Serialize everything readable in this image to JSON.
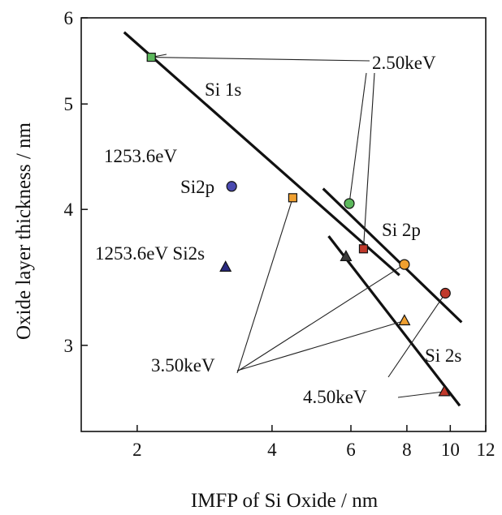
{
  "chart_data": {
    "type": "scatter",
    "x_scale": "log",
    "y_scale": "log",
    "xlim": [
      1.5,
      12
    ],
    "ylim": [
      2.5,
      6
    ],
    "xlabel": "IMFP of Si Oxide  / nm",
    "ylabel": "Oxide layer thickness / nm",
    "x_ticks": [
      2,
      4,
      6,
      8,
      10,
      12
    ],
    "y_ticks": [
      3,
      4,
      5,
      6
    ],
    "grid": false,
    "series": [
      {
        "name": "Si 1s",
        "marker": "square",
        "points": [
          {
            "x": 2.15,
            "y": 5.52,
            "color": "#5cb85c"
          },
          {
            "x": 4.45,
            "y": 4.1,
            "color": "#f0a030"
          },
          {
            "x": 6.4,
            "y": 3.68,
            "color": "#c0392b"
          }
        ],
        "fit_line": [
          [
            1.87,
            5.82
          ],
          [
            7.7,
            3.48
          ]
        ]
      },
      {
        "name": "Si 2p",
        "marker": "circle",
        "points": [
          {
            "x": 3.25,
            "y": 4.2,
            "color": "#4a4ab0"
          },
          {
            "x": 5.95,
            "y": 4.05,
            "color": "#5cb85c"
          },
          {
            "x": 7.9,
            "y": 3.56,
            "color": "#f0a030"
          },
          {
            "x": 9.75,
            "y": 3.35,
            "color": "#c0392b"
          }
        ],
        "fit_line": [
          [
            5.2,
            4.18
          ],
          [
            10.6,
            3.15
          ]
        ]
      },
      {
        "name": "Si 2s",
        "marker": "triangle",
        "points": [
          {
            "x": 3.15,
            "y": 3.54,
            "color": "#2a2a80"
          },
          {
            "x": 5.85,
            "y": 3.62,
            "color": "#3a3a3a"
          },
          {
            "x": 7.9,
            "y": 3.16,
            "color": "#f0a030"
          },
          {
            "x": 9.7,
            "y": 2.72,
            "color": "#c0392b"
          }
        ],
        "fit_line": [
          [
            5.35,
            3.78
          ],
          [
            10.5,
            2.64
          ]
        ]
      }
    ],
    "annotations": [
      {
        "text": "Si 1s"
      },
      {
        "text": "Si 2p"
      },
      {
        "text": "Si 2s"
      },
      {
        "text": "1253.6eV"
      },
      {
        "text": "Si2p"
      },
      {
        "text": "1253.6eV  Si2s"
      },
      {
        "text": "2.50keV"
      },
      {
        "text": "3.50keV"
      },
      {
        "text": "4.50keV"
      }
    ]
  }
}
